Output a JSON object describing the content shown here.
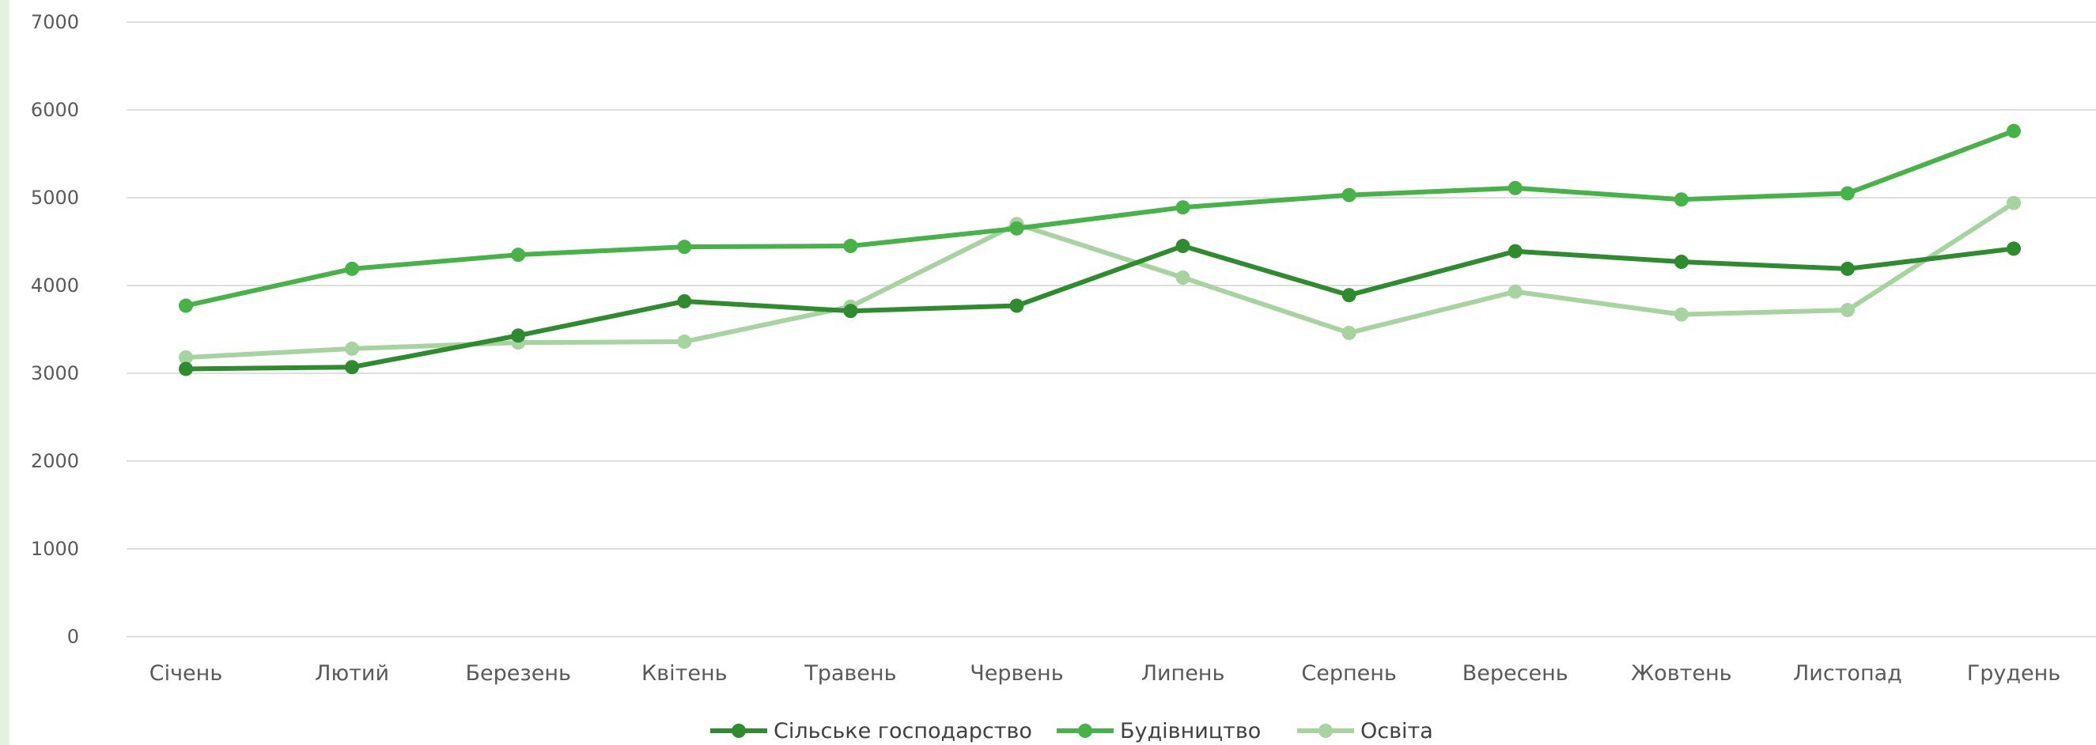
{
  "chart_data": {
    "type": "line",
    "title": "",
    "xlabel": "",
    "ylabel": "",
    "categories": [
      "Січень",
      "Лютий",
      "Березень",
      "Квітень",
      "Травень",
      "Червень",
      "Липень",
      "Серпень",
      "Вересень",
      "Жовтень",
      "Листопад",
      "Грудень"
    ],
    "ylim": [
      0,
      7000
    ],
    "yticks": [
      "0",
      "1000",
      "2000",
      "3000",
      "4000",
      "5000",
      "6000",
      "7000"
    ],
    "grid": true,
    "legend_position": "bottom",
    "series": [
      {
        "name": "Сільське господарство",
        "color": "#2e8b2e",
        "values": [
          3050,
          3070,
          3430,
          3820,
          3710,
          3770,
          4450,
          3890,
          4390,
          4270,
          4190,
          4420
        ]
      },
      {
        "name": "Будівництво",
        "color": "#47b247",
        "values": [
          3770,
          4190,
          4350,
          4440,
          4450,
          4650,
          4890,
          5030,
          5110,
          4980,
          5050,
          5760
        ]
      },
      {
        "name": "Освіта",
        "color": "#a6d3a0",
        "values": [
          3180,
          3280,
          3350,
          3360,
          3760,
          4700,
          4090,
          3460,
          3930,
          3670,
          3720,
          4940
        ]
      }
    ]
  }
}
